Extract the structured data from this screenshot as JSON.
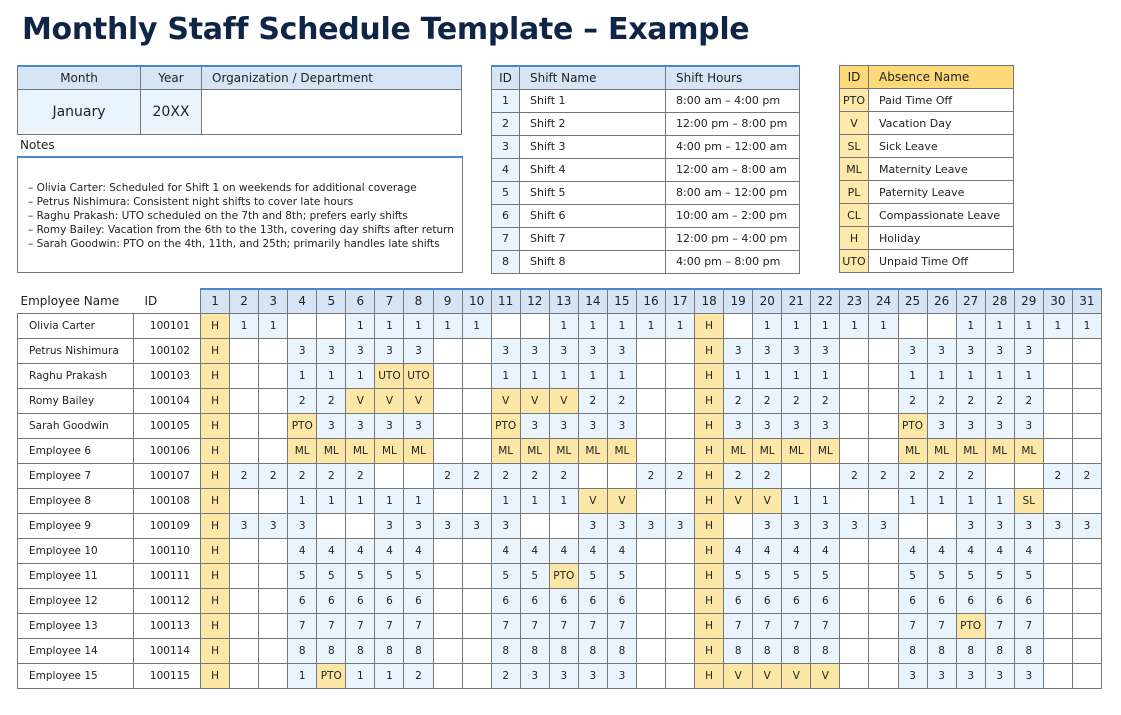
{
  "title": "Monthly Staff Schedule Template – Example",
  "meta": {
    "month_label": "Month",
    "year_label": "Year",
    "org_label": "Organization / Department",
    "month": "January",
    "year": "20XX",
    "org": ""
  },
  "notes": {
    "label": "Notes",
    "lines": [
      "– Olivia Carter: Scheduled for Shift 1 on weekends for additional coverage",
      "– Petrus Nishimura: Consistent night shifts to cover late hours",
      "– Raghu Prakash: UTO scheduled on the 7th and 8th; prefers early shifts",
      "– Romy Bailey: Vacation from the 6th to the 13th, covering day shifts after return",
      "– Sarah Goodwin: PTO on the 4th, 11th, and 25th; primarily handles late shifts"
    ]
  },
  "shifts": {
    "headers": [
      "ID",
      "Shift Name",
      "Shift Hours"
    ],
    "rows": [
      [
        "1",
        "Shift 1",
        "8:00 am – 4:00 pm"
      ],
      [
        "2",
        "Shift 2",
        "12:00 pm – 8:00 pm"
      ],
      [
        "3",
        "Shift 3",
        "4:00 pm – 12:00 am"
      ],
      [
        "4",
        "Shift 4",
        "12:00 am – 8:00 am"
      ],
      [
        "5",
        "Shift 5",
        "8:00 am – 12:00 pm"
      ],
      [
        "6",
        "Shift 6",
        "10:00 am – 2:00 pm"
      ],
      [
        "7",
        "Shift 7",
        "12:00 pm – 4:00 pm"
      ],
      [
        "8",
        "Shift 8",
        "4:00 pm – 8:00 pm"
      ]
    ]
  },
  "absences": {
    "headers": [
      "ID",
      "Absence Name"
    ],
    "rows": [
      [
        "PTO",
        "Paid Time Off"
      ],
      [
        "V",
        "Vacation Day"
      ],
      [
        "SL",
        "Sick Leave"
      ],
      [
        "ML",
        "Maternity Leave"
      ],
      [
        "PL",
        "Paternity Leave"
      ],
      [
        "CL",
        "Compassionate Leave"
      ],
      [
        "H",
        "Holiday"
      ],
      [
        "UTO",
        "Unpaid Time Off"
      ]
    ]
  },
  "colors": {
    "title": "#0f2547",
    "header_blue": "#d6e5f5",
    "scheduled_blue": "#e9f4fd",
    "absence_yellow": "#fde7a6",
    "accent": "#4a86d4"
  },
  "schedule": {
    "name_header": "Employee Name",
    "id_header": "ID",
    "days": [
      "1",
      "2",
      "3",
      "4",
      "5",
      "6",
      "7",
      "8",
      "9",
      "10",
      "11",
      "12",
      "13",
      "14",
      "15",
      "16",
      "17",
      "18",
      "19",
      "20",
      "21",
      "22",
      "23",
      "24",
      "25",
      "26",
      "27",
      "28",
      "29",
      "30",
      "31"
    ],
    "employees": [
      {
        "name": "Olivia Carter",
        "id": "100101",
        "days": [
          "H",
          "1",
          "1",
          "",
          "",
          "1",
          "1",
          "1",
          "1",
          "1",
          "",
          "",
          "1",
          "1",
          "1",
          "1",
          "1",
          "H",
          "",
          "1",
          "1",
          "1",
          "1",
          "1",
          "",
          "",
          "1",
          "1",
          "1",
          "1",
          "1"
        ]
      },
      {
        "name": "Petrus Nishimura",
        "id": "100102",
        "days": [
          "H",
          "",
          "",
          "3",
          "3",
          "3",
          "3",
          "3",
          "",
          "",
          "3",
          "3",
          "3",
          "3",
          "3",
          "",
          "",
          "H",
          "3",
          "3",
          "3",
          "3",
          "",
          "",
          "3",
          "3",
          "3",
          "3",
          "3",
          "",
          ""
        ]
      },
      {
        "name": "Raghu Prakash",
        "id": "100103",
        "days": [
          "H",
          "",
          "",
          "1",
          "1",
          "1",
          "UTO",
          "UTO",
          "",
          "",
          "1",
          "1",
          "1",
          "1",
          "1",
          "",
          "",
          "H",
          "1",
          "1",
          "1",
          "1",
          "",
          "",
          "1",
          "1",
          "1",
          "1",
          "1",
          "",
          ""
        ]
      },
      {
        "name": "Romy Bailey",
        "id": "100104",
        "days": [
          "H",
          "",
          "",
          "2",
          "2",
          "V",
          "V",
          "V",
          "",
          "",
          "V",
          "V",
          "V",
          "2",
          "2",
          "",
          "",
          "H",
          "2",
          "2",
          "2",
          "2",
          "",
          "",
          "2",
          "2",
          "2",
          "2",
          "2",
          "",
          ""
        ]
      },
      {
        "name": "Sarah Goodwin",
        "id": "100105",
        "days": [
          "H",
          "",
          "",
          "PTO",
          "3",
          "3",
          "3",
          "3",
          "",
          "",
          "PTO",
          "3",
          "3",
          "3",
          "3",
          "",
          "",
          "H",
          "3",
          "3",
          "3",
          "3",
          "",
          "",
          "PTO",
          "3",
          "3",
          "3",
          "3",
          "",
          ""
        ]
      },
      {
        "name": "Employee 6",
        "id": "100106",
        "days": [
          "H",
          "",
          "",
          "ML",
          "ML",
          "ML",
          "ML",
          "ML",
          "",
          "",
          "ML",
          "ML",
          "ML",
          "ML",
          "ML",
          "",
          "",
          "H",
          "ML",
          "ML",
          "ML",
          "ML",
          "",
          "",
          "ML",
          "ML",
          "ML",
          "ML",
          "ML",
          "",
          ""
        ]
      },
      {
        "name": "Employee 7",
        "id": "100107",
        "days": [
          "H",
          "2",
          "2",
          "2",
          "2",
          "2",
          "",
          "",
          "2",
          "2",
          "2",
          "2",
          "2",
          "",
          "",
          "2",
          "2",
          "H",
          "2",
          "2",
          "",
          "",
          "2",
          "2",
          "2",
          "2",
          "2",
          "",
          "",
          "2",
          "2"
        ]
      },
      {
        "name": "Employee 8",
        "id": "100108",
        "days": [
          "H",
          "",
          "",
          "1",
          "1",
          "1",
          "1",
          "1",
          "",
          "",
          "1",
          "1",
          "1",
          "V",
          "V",
          "",
          "",
          "H",
          "V",
          "V",
          "1",
          "1",
          "",
          "",
          "1",
          "1",
          "1",
          "1",
          "SL",
          "",
          ""
        ]
      },
      {
        "name": "Employee 9",
        "id": "100109",
        "days": [
          "H",
          "3",
          "3",
          "3",
          "",
          "",
          "3",
          "3",
          "3",
          "3",
          "3",
          "",
          "",
          "3",
          "3",
          "3",
          "3",
          "H",
          "",
          "3",
          "3",
          "3",
          "3",
          "3",
          "",
          "",
          "3",
          "3",
          "3",
          "3",
          "3"
        ]
      },
      {
        "name": "Employee 10",
        "id": "100110",
        "days": [
          "H",
          "",
          "",
          "4",
          "4",
          "4",
          "4",
          "4",
          "",
          "",
          "4",
          "4",
          "4",
          "4",
          "4",
          "",
          "",
          "H",
          "4",
          "4",
          "4",
          "4",
          "",
          "",
          "4",
          "4",
          "4",
          "4",
          "4",
          "",
          ""
        ]
      },
      {
        "name": "Employee 11",
        "id": "100111",
        "days": [
          "H",
          "",
          "",
          "5",
          "5",
          "5",
          "5",
          "5",
          "",
          "",
          "5",
          "5",
          "PTO",
          "5",
          "5",
          "",
          "",
          "H",
          "5",
          "5",
          "5",
          "5",
          "",
          "",
          "5",
          "5",
          "5",
          "5",
          "5",
          "",
          ""
        ]
      },
      {
        "name": "Employee 12",
        "id": "100112",
        "days": [
          "H",
          "",
          "",
          "6",
          "6",
          "6",
          "6",
          "6",
          "",
          "",
          "6",
          "6",
          "6",
          "6",
          "6",
          "",
          "",
          "H",
          "6",
          "6",
          "6",
          "6",
          "",
          "",
          "6",
          "6",
          "6",
          "6",
          "6",
          "",
          ""
        ]
      },
      {
        "name": "Employee 13",
        "id": "100113",
        "days": [
          "H",
          "",
          "",
          "7",
          "7",
          "7",
          "7",
          "7",
          "",
          "",
          "7",
          "7",
          "7",
          "7",
          "7",
          "",
          "",
          "H",
          "7",
          "7",
          "7",
          "7",
          "",
          "",
          "7",
          "7",
          "PTO",
          "7",
          "7",
          "",
          ""
        ]
      },
      {
        "name": "Employee 14",
        "id": "100114",
        "days": [
          "H",
          "",
          "",
          "8",
          "8",
          "8",
          "8",
          "8",
          "",
          "",
          "8",
          "8",
          "8",
          "8",
          "8",
          "",
          "",
          "H",
          "8",
          "8",
          "8",
          "8",
          "",
          "",
          "8",
          "8",
          "8",
          "8",
          "8",
          "",
          ""
        ]
      },
      {
        "name": "Employee 15",
        "id": "100115",
        "days": [
          "H",
          "",
          "",
          "1",
          "PTO",
          "1",
          "1",
          "2",
          "",
          "",
          "2",
          "3",
          "3",
          "3",
          "3",
          "",
          "",
          "H",
          "V",
          "V",
          "V",
          "V",
          "",
          "",
          "3",
          "3",
          "3",
          "3",
          "3",
          "",
          ""
        ]
      }
    ]
  }
}
